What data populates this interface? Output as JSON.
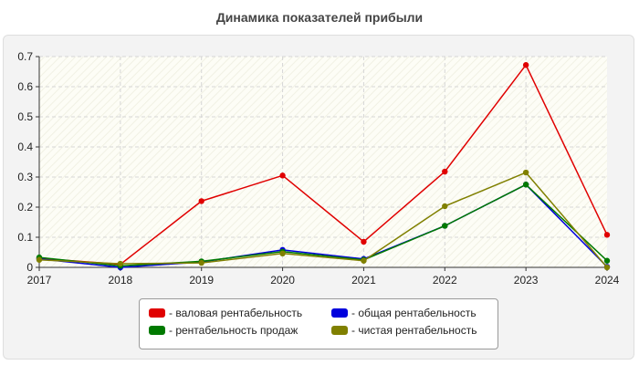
{
  "page": {
    "title": "Динамика показателей прибыли"
  },
  "chart_data": {
    "type": "line",
    "title": "Динамика показателей прибыли",
    "xlabel": "",
    "ylabel": "",
    "x": [
      "2017",
      "2018",
      "2019",
      "2020",
      "2021",
      "2022",
      "2023",
      "2024"
    ],
    "ylim": [
      0,
      0.7
    ],
    "yticks": [
      "0",
      "0.1",
      "0.2",
      "0.3",
      "0.4",
      "0.5",
      "0.6",
      "0.7"
    ],
    "grid": true,
    "legend_position": "bottom",
    "series": [
      {
        "name": "- валовая рентабельность",
        "color": "#e00000",
        "values": [
          0.03,
          0.01,
          0.22,
          0.305,
          0.085,
          0.318,
          0.672,
          0.108
        ]
      },
      {
        "name": "- общая рентабельность",
        "color": "#0000dd",
        "values": [
          0.028,
          0.0,
          0.018,
          0.058,
          0.028,
          0.138,
          0.275,
          0.002
        ]
      },
      {
        "name": "- рентабельность продаж",
        "color": "#007a00",
        "values": [
          0.033,
          0.005,
          0.02,
          0.052,
          0.025,
          0.138,
          0.275,
          0.022
        ]
      },
      {
        "name": "- чистая рентабельность",
        "color": "#808000",
        "values": [
          0.025,
          0.012,
          0.015,
          0.046,
          0.022,
          0.203,
          0.315,
          0.0
        ]
      }
    ]
  }
}
